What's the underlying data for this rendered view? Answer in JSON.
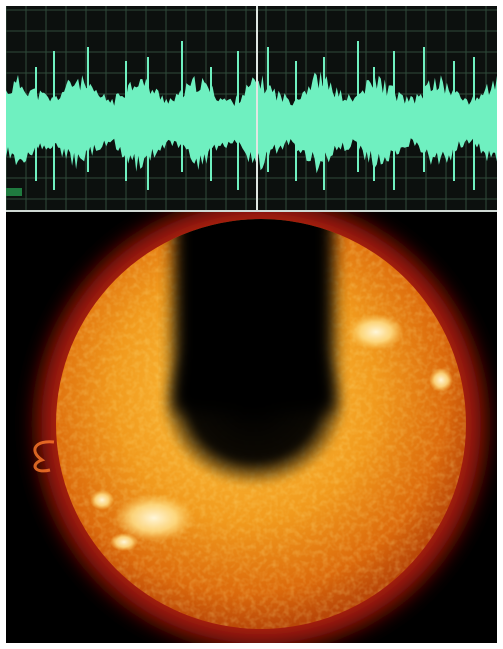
{
  "waveform": {
    "background_color": "#0c100e",
    "grid_color": "#2f4a3a",
    "wave_color": "#6ff0c0",
    "cursor_color": "#dfe7e2",
    "level_indicator_color": "#1f7a3f",
    "amplitude_envelope": [
      0.55,
      0.72,
      0.6,
      0.48,
      0.4,
      0.62,
      0.78,
      0.58,
      0.45,
      0.38,
      0.6,
      0.8,
      0.63,
      0.46,
      0.39,
      0.58,
      0.74,
      0.6,
      0.43,
      0.36,
      0.57,
      0.76,
      0.62,
      0.46,
      0.4,
      0.6,
      0.82,
      0.66,
      0.48,
      0.4,
      0.62,
      0.77,
      0.6,
      0.45,
      0.38,
      0.59,
      0.75,
      0.61,
      0.44,
      0.39,
      0.58,
      0.73
    ]
  },
  "sun": {
    "disk_color": "#f19a1d",
    "highlight_color": "#ffd66a",
    "corona_color": "#d92b13",
    "shadow_color": "#000000"
  }
}
